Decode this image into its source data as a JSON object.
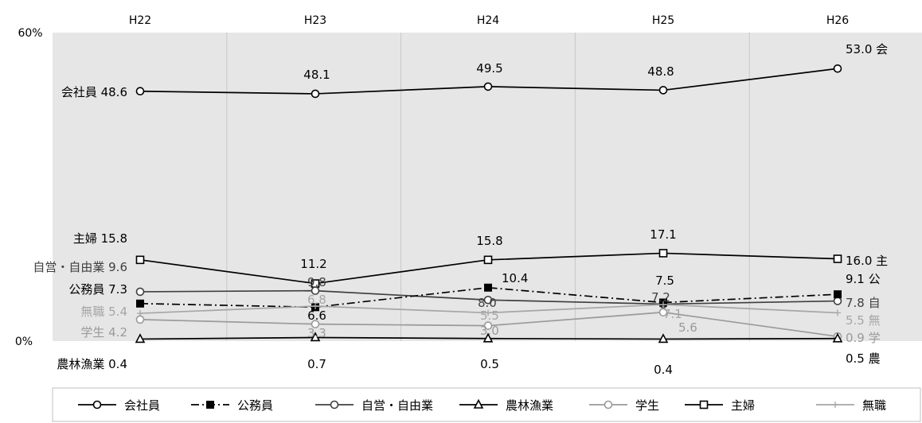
{
  "chart_data": {
    "type": "line",
    "categories": [
      "H22",
      "H23",
      "H24",
      "H25",
      "H26"
    ],
    "ylim": [
      0,
      60
    ],
    "y_tick_labels": [
      "60%",
      "0%"
    ],
    "grid": true,
    "legend_position": "bottom",
    "series": [
      {
        "name": "会社員",
        "values": [
          48.6,
          48.1,
          49.5,
          48.8,
          53.0
        ],
        "color": "#000000",
        "marker": "circle-open",
        "line": "solid",
        "labels": [
          "会社員 48.6",
          "48.1",
          "49.5",
          "48.8",
          "53.0 会"
        ]
      },
      {
        "name": "公務員",
        "values": [
          7.3,
          6.6,
          10.4,
          7.5,
          9.1
        ],
        "color": "#000000",
        "marker": "square-filled",
        "line": "dashdot",
        "labels": [
          "公務員 7.3",
          "6.6",
          "10.4",
          "7.5",
          "9.1 公"
        ]
      },
      {
        "name": "自営・自由業",
        "values": [
          9.6,
          9.8,
          8.0,
          7.2,
          7.8
        ],
        "color": "#404040",
        "marker": "circle-open",
        "line": "solid",
        "labels": [
          "自営・自由業 9.6",
          "9.8",
          "8.0",
          "7.2",
          "7.8 自"
        ]
      },
      {
        "name": "農林漁業",
        "values": [
          0.4,
          0.7,
          0.5,
          0.4,
          0.5
        ],
        "color": "#000000",
        "marker": "triangle-open",
        "line": "solid",
        "labels": [
          "農林漁業 0.4",
          "0.7",
          "0.5",
          "0.4",
          "0.5 農"
        ]
      },
      {
        "name": "学生",
        "values": [
          4.2,
          3.3,
          3.0,
          5.6,
          0.9
        ],
        "color": "#9a9a9a",
        "marker": "circle-open",
        "line": "solid",
        "labels": [
          "学生 4.2",
          "3.3",
          "3.0",
          "5.6",
          "0.9 学"
        ]
      },
      {
        "name": "主婦",
        "values": [
          15.8,
          11.2,
          15.8,
          17.1,
          16.0
        ],
        "color": "#000000",
        "marker": "square-open",
        "line": "solid",
        "labels": [
          "主婦 15.8",
          "11.2",
          "15.8",
          "17.1",
          "16.0 主"
        ]
      },
      {
        "name": "無職",
        "values": [
          5.4,
          6.8,
          5.5,
          7.1,
          5.5
        ],
        "color": "#a6a6a6",
        "marker": "plus",
        "line": "solid",
        "labels": [
          "無職 5.4",
          "6.8",
          "5.5",
          "7.1",
          "5.5 無"
        ]
      }
    ]
  }
}
